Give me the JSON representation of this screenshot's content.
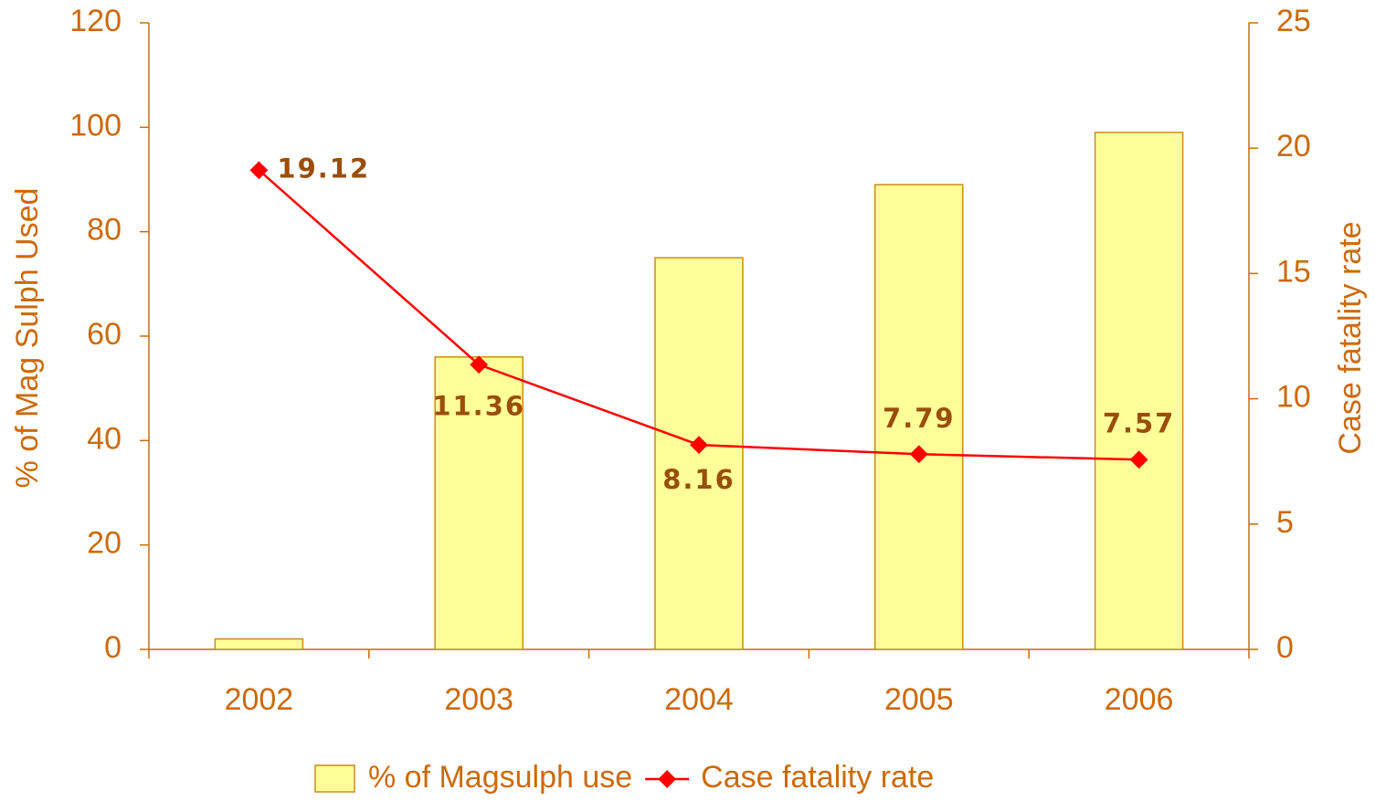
{
  "chart_data": {
    "type": "bar",
    "categories": [
      "2002",
      "2003",
      "2004",
      "2005",
      "2006"
    ],
    "series": [
      {
        "name": "% of Magsulph use",
        "type": "bar",
        "color": "#ffff99",
        "values": [
          2,
          56,
          75,
          89,
          99
        ]
      },
      {
        "name": "Case fatality rate",
        "type": "line",
        "axis": "y2",
        "color": "#ff0000",
        "values": [
          19.12,
          11.36,
          8.16,
          7.79,
          7.57
        ]
      }
    ],
    "ylabel": "% of Mag Sulph Used",
    "y2label": "Case fatality rate",
    "ylim": [
      0,
      120
    ],
    "yticks": [
      0,
      20,
      40,
      60,
      80,
      100,
      120
    ],
    "y2lim": [
      0,
      25
    ],
    "y2ticks": [
      0,
      5,
      10,
      15,
      20,
      25
    ],
    "legend": "bottom"
  }
}
